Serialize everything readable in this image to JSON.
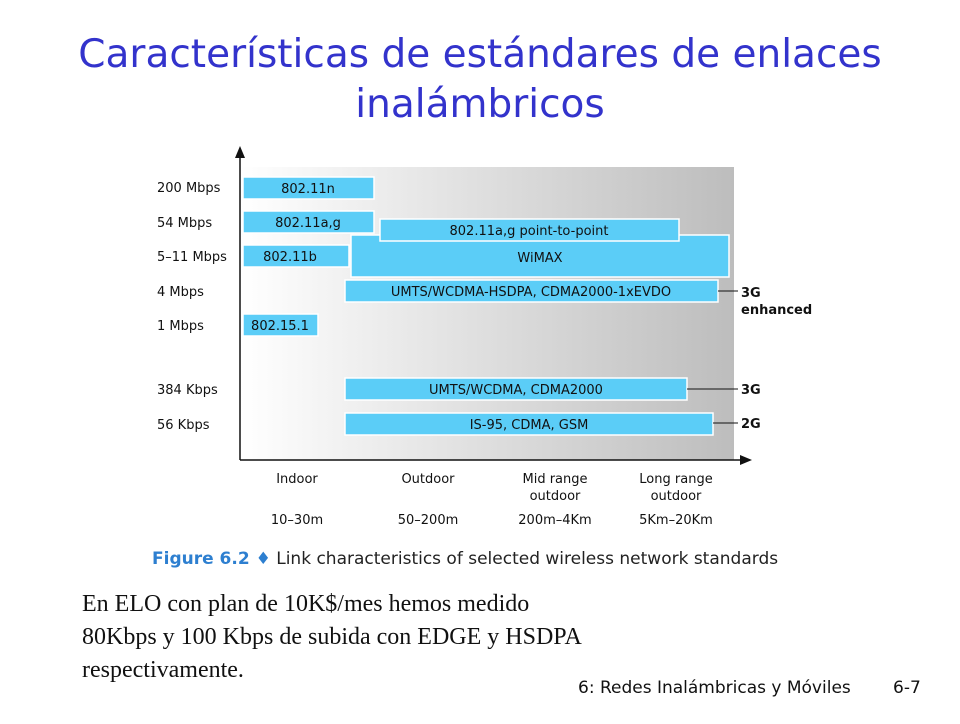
{
  "slide": {
    "title_line1": "Características de estándares de enlaces",
    "title_line2": "inalámbricos",
    "caption_figure": "Figure 6.2 ♦",
    "caption_text": "Link characteristics of selected wireless network standards",
    "note_line1": "En ELO con plan de 10K$/mes hemos medido",
    "note_line2": "80Kbps y 100 Kbps de subida con EDGE y HSDPA",
    "note_line3": "respectivamente.",
    "footer": "6: Redes Inalámbricas y Móviles",
    "page_number": "6-7"
  },
  "diagram": {
    "rates": [
      "200 Mbps",
      "54 Mbps",
      "5–11 Mbps",
      "4 Mbps",
      "1 Mbps",
      "384 Kbps",
      "56 Kbps"
    ],
    "ranges": [
      {
        "name": "Indoor",
        "sub": "",
        "distance": "10–30m"
      },
      {
        "name": "Outdoor",
        "sub": "",
        "distance": "50–200m"
      },
      {
        "name": "Mid range",
        "sub": "outdoor",
        "distance": "200m–4Km"
      },
      {
        "name": "Long range",
        "sub": "outdoor",
        "distance": "5Km–20Km"
      }
    ],
    "standards": [
      {
        "label": "802.11n",
        "rate": "200 Mbps",
        "range": "Indoor"
      },
      {
        "label": "802.11a,g",
        "rate": "54 Mbps",
        "range": "Indoor"
      },
      {
        "label": "802.11a,g point-to-point",
        "rate": "54 Mbps",
        "range": "Outdoor – Long range"
      },
      {
        "label": "802.11b",
        "rate": "5–11 Mbps",
        "range": "Indoor"
      },
      {
        "label": "WiMAX",
        "rate": "5–11 Mbps",
        "range": "Outdoor – Long range"
      },
      {
        "label": "UMTS/WCDMA-HSDPA, CDMA2000-1xEVDO",
        "rate": "4 Mbps",
        "range": "Outdoor – Long range"
      },
      {
        "label": "802.15.1",
        "rate": "1 Mbps",
        "range": "Indoor"
      },
      {
        "label": "UMTS/WCDMA, CDMA2000",
        "rate": "384 Kbps",
        "range": "Outdoor – Long range"
      },
      {
        "label": "IS-95, CDMA, GSM",
        "rate": "56 Kbps",
        "range": "Outdoor – Long range"
      }
    ],
    "generations": [
      "3G",
      "enhanced",
      "3G",
      "2G"
    ],
    "colors": {
      "bar": "#5bcdf7",
      "bar_border": "#ffffff",
      "shade_dark": "#bdbdbd",
      "title": "#3333cc"
    }
  }
}
